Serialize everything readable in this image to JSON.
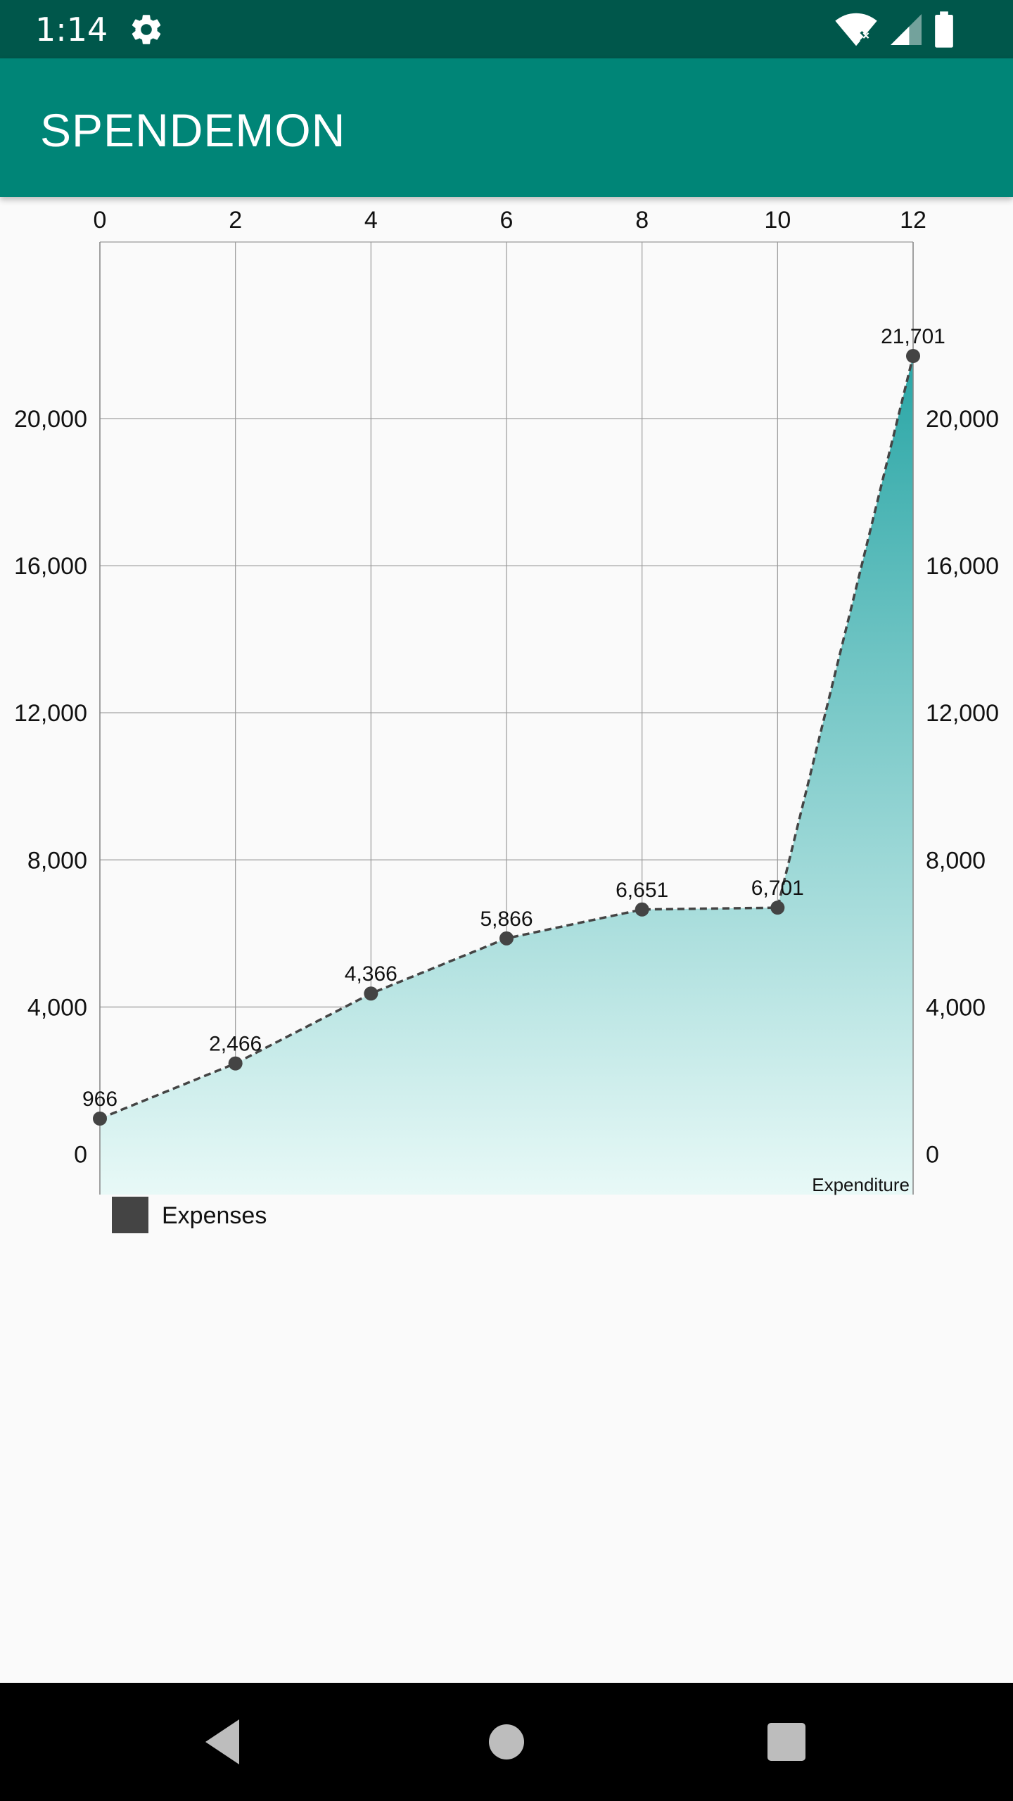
{
  "status_bar": {
    "time": "1:14",
    "icons": [
      "settings-icon",
      "wifi-off-icon",
      "cell-signal-icon",
      "battery-icon"
    ]
  },
  "app_bar": {
    "title": "SPENDEMON",
    "color": "#008577",
    "status_color": "#00574b"
  },
  "chart_data": {
    "type": "area",
    "x": [
      0,
      2,
      4,
      6,
      8,
      10,
      12
    ],
    "series": [
      {
        "name": "Expenses",
        "values": [
          966,
          2466,
          4366,
          5866,
          6651,
          6701,
          21701
        ],
        "labels": [
          "966",
          "2,466",
          "4,366",
          "5,866",
          "6,651",
          "6,701",
          "21,701"
        ],
        "color": "#444444",
        "fill_top": "#2aa6a6",
        "fill_bottom": "#e8f9f7",
        "line_style": "dashed"
      }
    ],
    "xlim": [
      0,
      12
    ],
    "ylim": [
      -1100,
      24800
    ],
    "x_ticks": [
      0,
      2,
      4,
      6,
      8,
      10,
      12
    ],
    "x_tick_labels": [
      "0",
      "2",
      "4",
      "6",
      "8",
      "10",
      "12"
    ],
    "y_ticks": [
      0,
      4000,
      8000,
      12000,
      16000,
      20000
    ],
    "y_tick_labels": [
      "0",
      "4,000",
      "8,000",
      "12,000",
      "16,000",
      "20,000"
    ],
    "x_axis_position": "top",
    "y_axis": "left-and-right",
    "grid": true,
    "description": "Expenditure",
    "legend": {
      "position": "bottom-left",
      "entries": [
        "Expenses"
      ]
    }
  },
  "nav_bar": {
    "icons": [
      "back-icon",
      "home-icon",
      "recents-icon"
    ]
  }
}
